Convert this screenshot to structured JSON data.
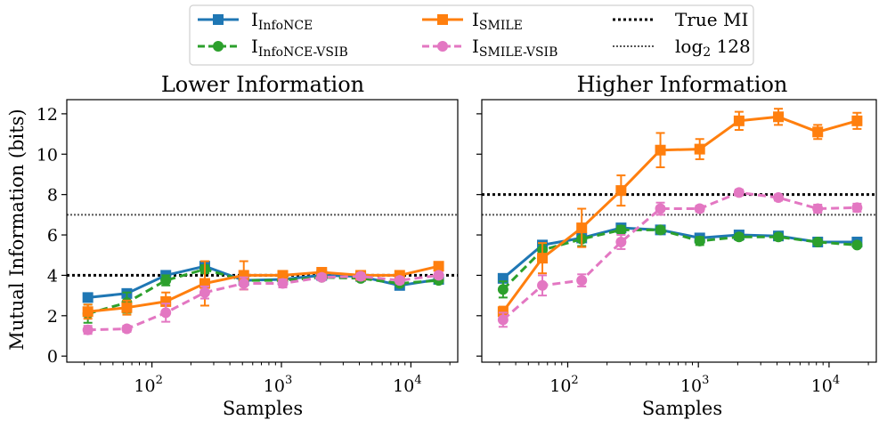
{
  "colors": {
    "infonce": "#1f77b4",
    "infonce_vsib": "#2ca02c",
    "smile": "#ff7f0e",
    "smile_vsib": "#e377c2",
    "true_mi": "#000000",
    "log2": "#555555"
  },
  "legend": {
    "infonce": {
      "base": "I",
      "sub": "InfoNCE"
    },
    "infonce_vsib": {
      "base": "I",
      "sub": "InfoNCE-VSIB"
    },
    "smile": {
      "base": "I",
      "sub": "SMILE"
    },
    "smile_vsib": {
      "base": "I",
      "sub": "SMILE-VSIB"
    },
    "true_mi": "True MI",
    "log2": {
      "base": "log",
      "sub": "2",
      "rest": " 128"
    }
  },
  "shared": {
    "xlabel": "Samples",
    "ylabel": "Mutual Information (bits)",
    "xscale": "log",
    "x": [
      32,
      64,
      128,
      256,
      512,
      1024,
      2048,
      4096,
      8192,
      16384
    ],
    "xlim": [
      22,
      23000
    ],
    "ylim": [
      -0.3,
      12.7
    ],
    "yticks": [
      "0",
      "2",
      "4",
      "6",
      "8",
      "10",
      "12"
    ],
    "xtick_base": "10",
    "xtick_exponents": [
      "2",
      "3",
      "4"
    ]
  },
  "chart_data": [
    {
      "type": "line",
      "title": "Lower Information",
      "true_mi": 4,
      "log2_128": 7,
      "series": [
        {
          "key": "infonce",
          "name": "I InfoNCE",
          "values": [
            2.9,
            3.1,
            4.0,
            4.45,
            3.75,
            3.8,
            4.0,
            3.95,
            3.5,
            3.8
          ],
          "err": [
            0.15,
            0.15,
            0.15,
            0.2,
            0.15,
            0.15,
            0.1,
            0.1,
            0.1,
            0.1
          ]
        },
        {
          "key": "infonce_vsib",
          "name": "I InfoNCE-VSIB",
          "values": [
            2.1,
            2.65,
            3.75,
            4.3,
            3.75,
            3.75,
            3.9,
            3.85,
            3.6,
            3.75
          ],
          "err": [
            0.45,
            0.5,
            0.25,
            0.2,
            0.15,
            0.15,
            0.1,
            0.1,
            0.1,
            0.1
          ]
        },
        {
          "key": "smile",
          "name": "I SMILE",
          "values": [
            2.2,
            2.4,
            2.7,
            3.6,
            4.0,
            4.0,
            4.15,
            4.0,
            4.0,
            4.45
          ],
          "err": [
            0.35,
            0.35,
            0.45,
            1.1,
            0.7,
            0.2,
            0.2,
            0.2,
            0.15,
            0.2
          ]
        },
        {
          "key": "smile_vsib",
          "name": "I SMILE-VSIB",
          "values": [
            1.3,
            1.35,
            2.15,
            3.15,
            3.6,
            3.6,
            3.9,
            3.95,
            3.75,
            4.0
          ],
          "err": [
            0.2,
            0.15,
            0.45,
            0.3,
            0.3,
            0.2,
            0.15,
            0.15,
            0.15,
            0.15
          ]
        }
      ]
    },
    {
      "type": "line",
      "title": "Higher Information",
      "true_mi": 8,
      "log2_128": 7,
      "series": [
        {
          "key": "infonce",
          "name": "I InfoNCE",
          "values": [
            3.85,
            5.5,
            5.85,
            6.35,
            6.25,
            5.85,
            6.0,
            5.95,
            5.65,
            5.65
          ],
          "err": [
            0.15,
            0.15,
            0.15,
            0.15,
            0.15,
            0.15,
            0.1,
            0.1,
            0.1,
            0.1
          ]
        },
        {
          "key": "infonce_vsib",
          "name": "I InfoNCE-VSIB",
          "values": [
            3.3,
            5.25,
            5.8,
            6.25,
            6.25,
            5.7,
            5.9,
            5.9,
            5.65,
            5.5
          ],
          "err": [
            0.4,
            0.3,
            0.35,
            0.2,
            0.15,
            0.2,
            0.15,
            0.15,
            0.1,
            0.1
          ]
        },
        {
          "key": "smile",
          "name": "I SMILE",
          "values": [
            2.2,
            4.85,
            6.35,
            8.2,
            10.2,
            10.25,
            11.65,
            11.85,
            11.1,
            11.65
          ],
          "err": [
            0.25,
            0.75,
            0.95,
            0.75,
            0.85,
            0.5,
            0.45,
            0.4,
            0.35,
            0.4
          ]
        },
        {
          "key": "smile_vsib",
          "name": "I SMILE-VSIB",
          "values": [
            1.8,
            3.5,
            3.75,
            5.65,
            7.3,
            7.3,
            8.1,
            7.85,
            7.3,
            7.35
          ],
          "err": [
            0.35,
            0.5,
            0.3,
            0.35,
            0.3,
            0.15,
            0.15,
            0.15,
            0.2,
            0.2
          ]
        }
      ]
    }
  ]
}
